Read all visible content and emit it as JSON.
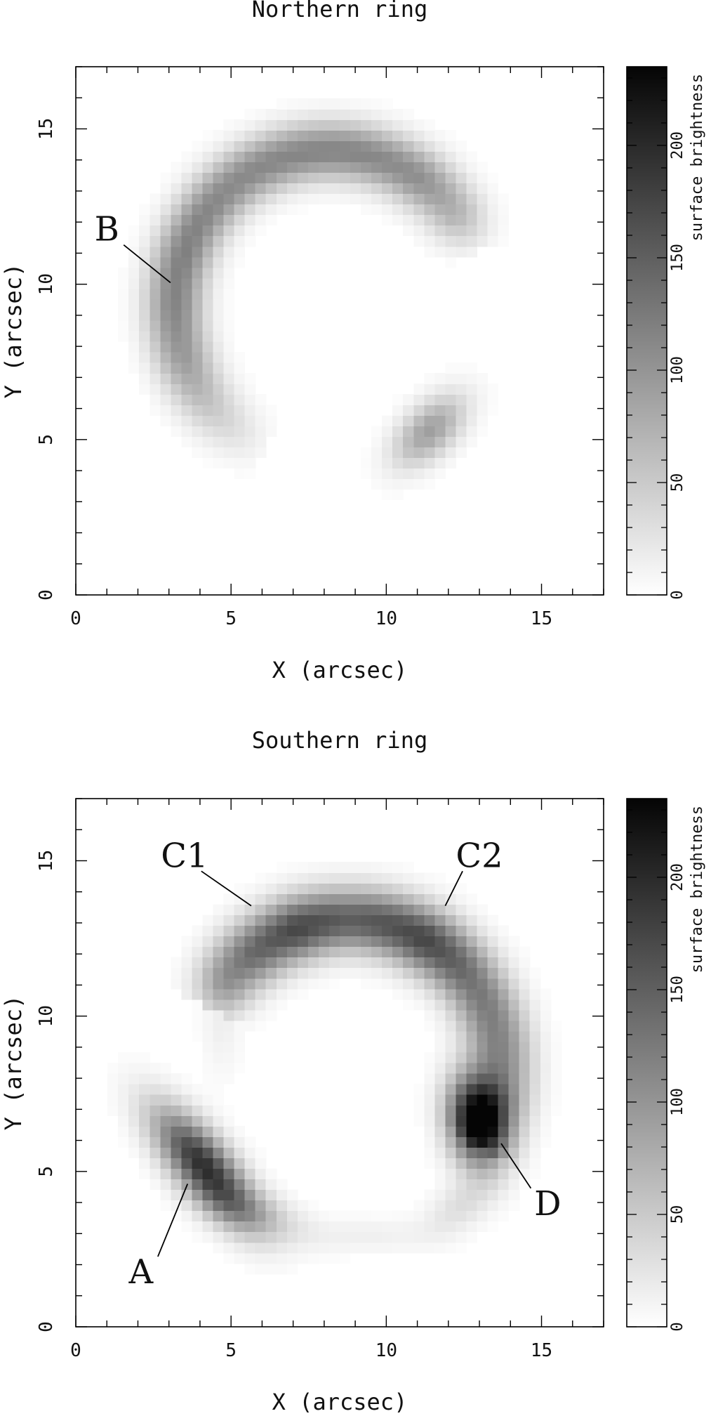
{
  "chart_data": [
    {
      "type": "heatmap",
      "title": "Northern ring",
      "xlabel": "X (arcsec)",
      "ylabel": "Y (arcsec)",
      "xlim": [
        0,
        17
      ],
      "ylim": [
        0,
        17
      ],
      "xticks": [
        0,
        5,
        10,
        15
      ],
      "yticks": [
        0,
        5,
        10,
        15
      ],
      "colorbar": {
        "label": "surface brightness",
        "range": [
          0,
          235
        ],
        "ticks": [
          0,
          50,
          100,
          150,
          200
        ]
      },
      "features": [
        {
          "type": "arc",
          "cx": 8.2,
          "cy": 9.3,
          "r": 5.0,
          "start_deg": 20,
          "end_deg": 245,
          "width": 1.1,
          "profile": [
            [
              20,
              8
            ],
            [
              35,
              70
            ],
            [
              55,
              105
            ],
            [
              80,
              115
            ],
            [
              100,
              115
            ],
            [
              130,
              110
            ],
            [
              160,
              120
            ],
            [
              180,
              115
            ],
            [
              200,
              95
            ],
            [
              225,
              45
            ],
            [
              245,
              8
            ]
          ]
        },
        {
          "type": "blob",
          "cx": 11.4,
          "cy": 5.3,
          "sx": 1.0,
          "sy": 0.55,
          "angle_deg": 45,
          "peak": 90
        }
      ],
      "annotations": [
        {
          "text": "B",
          "text_x": 1.0,
          "text_y": 11.4,
          "point_x": 3.05,
          "point_y": 10.05
        }
      ]
    },
    {
      "type": "heatmap",
      "title": "Southern ring",
      "xlabel": "X (arcsec)",
      "ylabel": "Y (arcsec)",
      "xlim": [
        0,
        17
      ],
      "ylim": [
        0,
        17
      ],
      "xticks": [
        0,
        5,
        10,
        15
      ],
      "yticks": [
        0,
        5,
        10,
        15
      ],
      "colorbar": {
        "label": "surface brightness",
        "range": [
          0,
          235
        ],
        "ticks": [
          0,
          50,
          100,
          150,
          200
        ]
      },
      "features": [
        {
          "type": "arc",
          "cx": 8.8,
          "cy": 8.2,
          "r": 4.9,
          "start_deg": -30,
          "end_deg": 155,
          "width": 1.2,
          "profile": [
            [
              -30,
              30
            ],
            [
              -10,
              95
            ],
            [
              10,
              115
            ],
            [
              35,
              130
            ],
            [
              60,
              175
            ],
            [
              90,
              150
            ],
            [
              110,
              175
            ],
            [
              130,
              140
            ],
            [
              145,
              90
            ],
            [
              155,
              30
            ]
          ]
        },
        {
          "type": "blob",
          "cx": 12.95,
          "cy": 6.6,
          "sx": 0.65,
          "sy": 1.0,
          "angle_deg": 10,
          "peak": 230
        },
        {
          "type": "blob",
          "cx": 4.1,
          "cy": 5.2,
          "sx": 1.55,
          "sy": 0.6,
          "angle_deg": -50,
          "peak": 195
        },
        {
          "type": "blob",
          "cx": 5.7,
          "cy": 3.7,
          "sx": 1.2,
          "sy": 0.5,
          "angle_deg": -20,
          "peak": 45
        },
        {
          "type": "blob",
          "cx": 9.4,
          "cy": 2.95,
          "sx": 1.6,
          "sy": 0.4,
          "angle_deg": 0,
          "peak": 14
        },
        {
          "type": "blob",
          "cx": 12.4,
          "cy": 3.9,
          "sx": 0.9,
          "sy": 0.5,
          "angle_deg": 35,
          "peak": 30
        },
        {
          "type": "blob",
          "cx": 4.7,
          "cy": 10.0,
          "sx": 0.45,
          "sy": 1.3,
          "angle_deg": 0,
          "peak": 16
        }
      ],
      "annotations": [
        {
          "text": "C1",
          "text_x": 3.5,
          "text_y": 14.8,
          "point_x": 5.65,
          "point_y": 13.55
        },
        {
          "text": "C2",
          "text_x": 13.0,
          "text_y": 14.8,
          "point_x": 11.9,
          "point_y": 13.55
        },
        {
          "text": "D",
          "text_x": 15.2,
          "text_y": 3.6,
          "point_x": 13.7,
          "point_y": 5.9
        },
        {
          "text": "A",
          "text_x": 2.1,
          "text_y": 1.4,
          "point_x": 3.6,
          "point_y": 4.6
        }
      ]
    }
  ]
}
